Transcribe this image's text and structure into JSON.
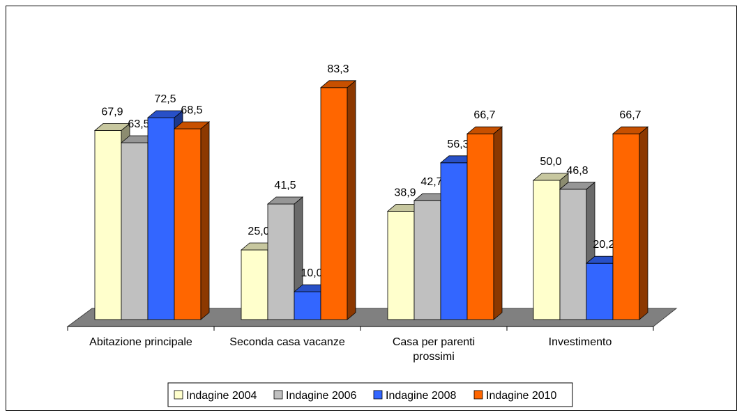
{
  "chart_data": {
    "type": "bar",
    "title": "",
    "xlabel": "",
    "ylabel": "",
    "ylim": [
      0,
      90
    ],
    "grid": false,
    "legend_position": "bottom",
    "categories": [
      [
        "Abitazione principale"
      ],
      [
        "Seconda casa vacanze"
      ],
      [
        "Casa per parenti",
        "prossimi"
      ],
      [
        "Investimento"
      ]
    ],
    "series": [
      {
        "name": "Indagine 2004",
        "color": "#FFFFCC",
        "values": [
          67.9,
          25.0,
          38.9,
          50.0
        ],
        "labels": [
          "67,9",
          "25,0",
          "38,9",
          "50,0"
        ]
      },
      {
        "name": "Indagine 2006",
        "color": "#C0C0C0",
        "values": [
          63.5,
          41.5,
          42.7,
          46.8
        ],
        "labels": [
          "63,5",
          "41,5",
          "42,7",
          "46,8"
        ]
      },
      {
        "name": "Indagine 2008",
        "color": "#3366FF",
        "values": [
          72.5,
          10.0,
          56.3,
          20.2
        ],
        "labels": [
          "72,5",
          "10,0",
          "56,3",
          "20,2"
        ]
      },
      {
        "name": "Indagine 2010",
        "color": "#FF6600",
        "values": [
          68.5,
          83.3,
          66.7,
          66.7
        ],
        "labels": [
          "68,5",
          "83,3",
          "66,7",
          "66,7"
        ]
      }
    ]
  }
}
